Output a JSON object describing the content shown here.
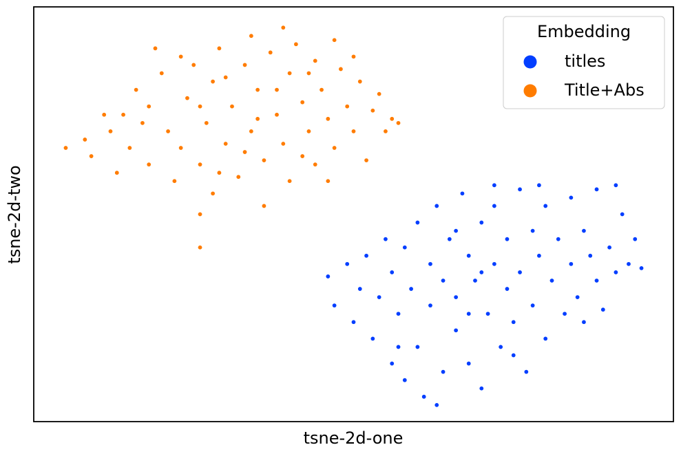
{
  "chart_data": {
    "type": "scatter",
    "x_label": "tsne-2d-one",
    "y_label": "tsne-2d-two",
    "legend_title": "Embedding",
    "legend": "upper right",
    "xlim": [
      0,
      100
    ],
    "ylim": [
      0,
      100
    ],
    "series": [
      {
        "name": "titles",
        "color": "#023eff",
        "x": [
          46,
          47,
          49,
          50,
          51,
          52,
          53,
          54,
          55,
          56,
          56,
          57,
          58,
          58,
          59,
          60,
          60,
          61,
          62,
          62,
          63,
          64,
          64,
          65,
          66,
          66,
          67,
          68,
          68,
          69,
          70,
          70,
          71,
          72,
          72,
          73,
          74,
          74,
          75,
          76,
          76,
          77,
          78,
          78,
          79,
          80,
          80,
          81,
          82,
          83,
          84,
          84,
          85,
          86,
          87,
          88,
          88,
          89,
          90,
          91,
          91,
          92,
          93,
          94,
          95,
          79,
          72,
          66,
          57,
          63,
          70,
          75,
          86,
          68
        ],
        "values": [
          35,
          28,
          38,
          24,
          32,
          40,
          20,
          30,
          44,
          14,
          36,
          26,
          10,
          42,
          32,
          48,
          18,
          6,
          28,
          38,
          52,
          12,
          34,
          44,
          22,
          30,
          55,
          40,
          14,
          34,
          48,
          8,
          26,
          38,
          52,
          18,
          32,
          44,
          24,
          56,
          36,
          12,
          46,
          28,
          40,
          52,
          20,
          34,
          44,
          26,
          54,
          38,
          30,
          46,
          40,
          56,
          34,
          27,
          42,
          57,
          36,
          50,
          38,
          44,
          37,
          57,
          57,
          46,
          18,
          4,
          36,
          16,
          24,
          26
        ]
      },
      {
        "name": "Title+Abs",
        "color": "#ff7c00",
        "x": [
          5,
          8,
          9,
          12,
          14,
          15,
          16,
          18,
          18,
          20,
          21,
          22,
          23,
          24,
          25,
          26,
          27,
          28,
          28,
          29,
          30,
          31,
          32,
          33,
          34,
          34,
          35,
          36,
          36,
          37,
          38,
          39,
          40,
          40,
          41,
          42,
          43,
          44,
          44,
          45,
          46,
          47,
          47,
          48,
          49,
          50,
          51,
          52,
          53,
          54,
          55,
          56,
          57,
          19,
          23,
          11,
          13,
          26,
          30,
          33,
          38,
          42,
          17,
          46,
          50,
          26,
          35,
          29,
          43,
          39,
          26
        ],
        "values": [
          66,
          68,
          64,
          70,
          74,
          66,
          80,
          76,
          62,
          84,
          70,
          58,
          66,
          78,
          86,
          62,
          72,
          55,
          82,
          90,
          67,
          76,
          59,
          86,
          70,
          93,
          80,
          63,
          52,
          89,
          74,
          67,
          84,
          58,
          91,
          77,
          70,
          62,
          87,
          80,
          73,
          66,
          92,
          85,
          76,
          70,
          82,
          63,
          75,
          79,
          70,
          73,
          72,
          90,
          88,
          74,
          60,
          50,
          83,
          65,
          80,
          64,
          72,
          58,
          88,
          76,
          73,
          60,
          84,
          95,
          42
        ]
      }
    ]
  }
}
